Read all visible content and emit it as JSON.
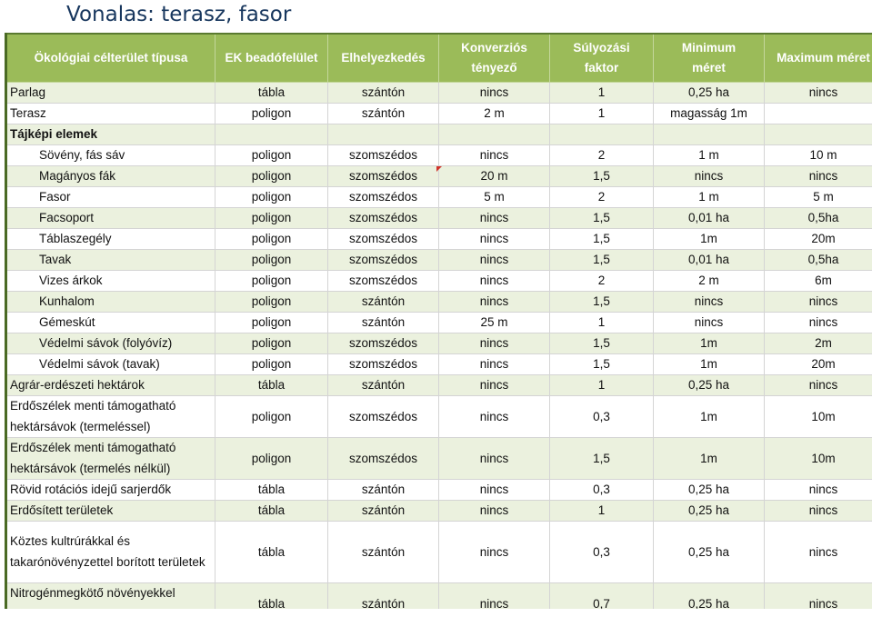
{
  "title": "Vonalas: terasz, fasor",
  "columns": [
    [
      "Ökológiai célterület típusa"
    ],
    [
      "EK beadófelület"
    ],
    [
      "Elhelyezkedés"
    ],
    [
      "Konverziós",
      "tényező"
    ],
    [
      "Súlyozási",
      "faktor"
    ],
    [
      "Minimum",
      "méret"
    ],
    [
      "Maximum méret"
    ]
  ],
  "rows": [
    {
      "cells": [
        "Parlag",
        "tábla",
        "szántón",
        "nincs",
        "1",
        "0,25 ha",
        "nincs"
      ],
      "alt": true
    },
    {
      "cells": [
        "Terasz",
        "poligon",
        "szántón",
        "2 m",
        "1",
        "magasság 1m",
        ""
      ],
      "alt": false
    },
    {
      "cells": [
        "Tájképi elemek",
        "",
        "",
        "",
        "",
        "",
        ""
      ],
      "alt": true,
      "section": true
    },
    {
      "cells": [
        "Sövény, fás sáv",
        "poligon",
        "szomszédos",
        "nincs",
        "2",
        "1 m",
        "10 m"
      ],
      "alt": false,
      "indent": true
    },
    {
      "cells": [
        "Magányos fák",
        "poligon",
        "szomszédos",
        "20 m",
        "1,5",
        "nincs",
        "nincs"
      ],
      "alt": true,
      "indent": true,
      "comment_col": 3
    },
    {
      "cells": [
        "Fasor",
        "poligon",
        "szomszédos",
        "5 m",
        "2",
        "1 m",
        "5 m"
      ],
      "alt": false,
      "indent": true
    },
    {
      "cells": [
        "Facsoport",
        "poligon",
        "szomszédos",
        "nincs",
        "1,5",
        "0,01 ha",
        "0,5ha"
      ],
      "alt": true,
      "indent": true
    },
    {
      "cells": [
        "Táblaszegély",
        "poligon",
        "szomszédos",
        "nincs",
        "1,5",
        "1m",
        "20m"
      ],
      "alt": false,
      "indent": true
    },
    {
      "cells": [
        "Tavak",
        "poligon",
        "szomszédos",
        "nincs",
        "1,5",
        "0,01 ha",
        "0,5ha"
      ],
      "alt": true,
      "indent": true
    },
    {
      "cells": [
        "Vizes árkok",
        "poligon",
        "szomszédos",
        "nincs",
        "2",
        "2 m",
        "6m"
      ],
      "alt": false,
      "indent": true
    },
    {
      "cells": [
        "Kunhalom",
        "poligon",
        "szántón",
        "nincs",
        "1,5",
        "nincs",
        "nincs"
      ],
      "alt": true,
      "indent": true
    },
    {
      "cells": [
        "Gémeskút",
        "poligon",
        "szántón",
        "25 m",
        "1",
        "nincs",
        "nincs"
      ],
      "alt": false,
      "indent": true
    },
    {
      "cells": [
        "Védelmi sávok (folyóvíz)",
        "poligon",
        "szomszédos",
        "nincs",
        "1,5",
        "1m",
        "2m"
      ],
      "alt": true,
      "indent": true
    },
    {
      "cells": [
        "Védelmi sávok (tavak)",
        "poligon",
        "szomszédos",
        "nincs",
        "1,5",
        "1m",
        "20m"
      ],
      "alt": false,
      "indent": true
    },
    {
      "cells": [
        "Agrár-erdészeti hektárok",
        "tábla",
        "szántón",
        "nincs",
        "1",
        "0,25 ha",
        "nincs"
      ],
      "alt": true
    },
    {
      "cells": [
        "Erdőszélek menti támogatható hektársávok (termeléssel)",
        "poligon",
        "szomszédos",
        "nincs",
        "0,3",
        "1m",
        "10m"
      ],
      "alt": false,
      "lines": 2
    },
    {
      "cells": [
        "Erdőszélek menti támogatható hektársávok (termelés nélkül)",
        "poligon",
        "szomszédos",
        "nincs",
        "1,5",
        "1m",
        "10m"
      ],
      "alt": true,
      "lines": 2
    },
    {
      "cells": [
        "Rövid rotációs idejű sarjerdők",
        "tábla",
        "szántón",
        "nincs",
        "0,3",
        "0,25 ha",
        "nincs"
      ],
      "alt": false
    },
    {
      "cells": [
        "Erdősített területek",
        "tábla",
        "szántón",
        "nincs",
        "1",
        "0,25 ha",
        "nincs"
      ],
      "alt": true
    },
    {
      "cells": [
        "Köztes kultrúrákkal és takarónövényzettel borított területek",
        "tábla",
        "szántón",
        "nincs",
        "0,3",
        "0,25 ha",
        "nincs"
      ],
      "alt": false,
      "lines": 3
    },
    {
      "cells": [
        "Nitrogénmegkötő növényekkel beültett területek",
        "tábla",
        "szántón",
        "nincs",
        "0,7",
        "0,25 ha",
        "nincs"
      ],
      "alt": true,
      "lines": 2
    }
  ],
  "colors": {
    "header_bg": "#9bbb59",
    "alt_row_bg": "#ebf1de",
    "title_color": "#17365d",
    "comment_marker": "#d0342c"
  }
}
